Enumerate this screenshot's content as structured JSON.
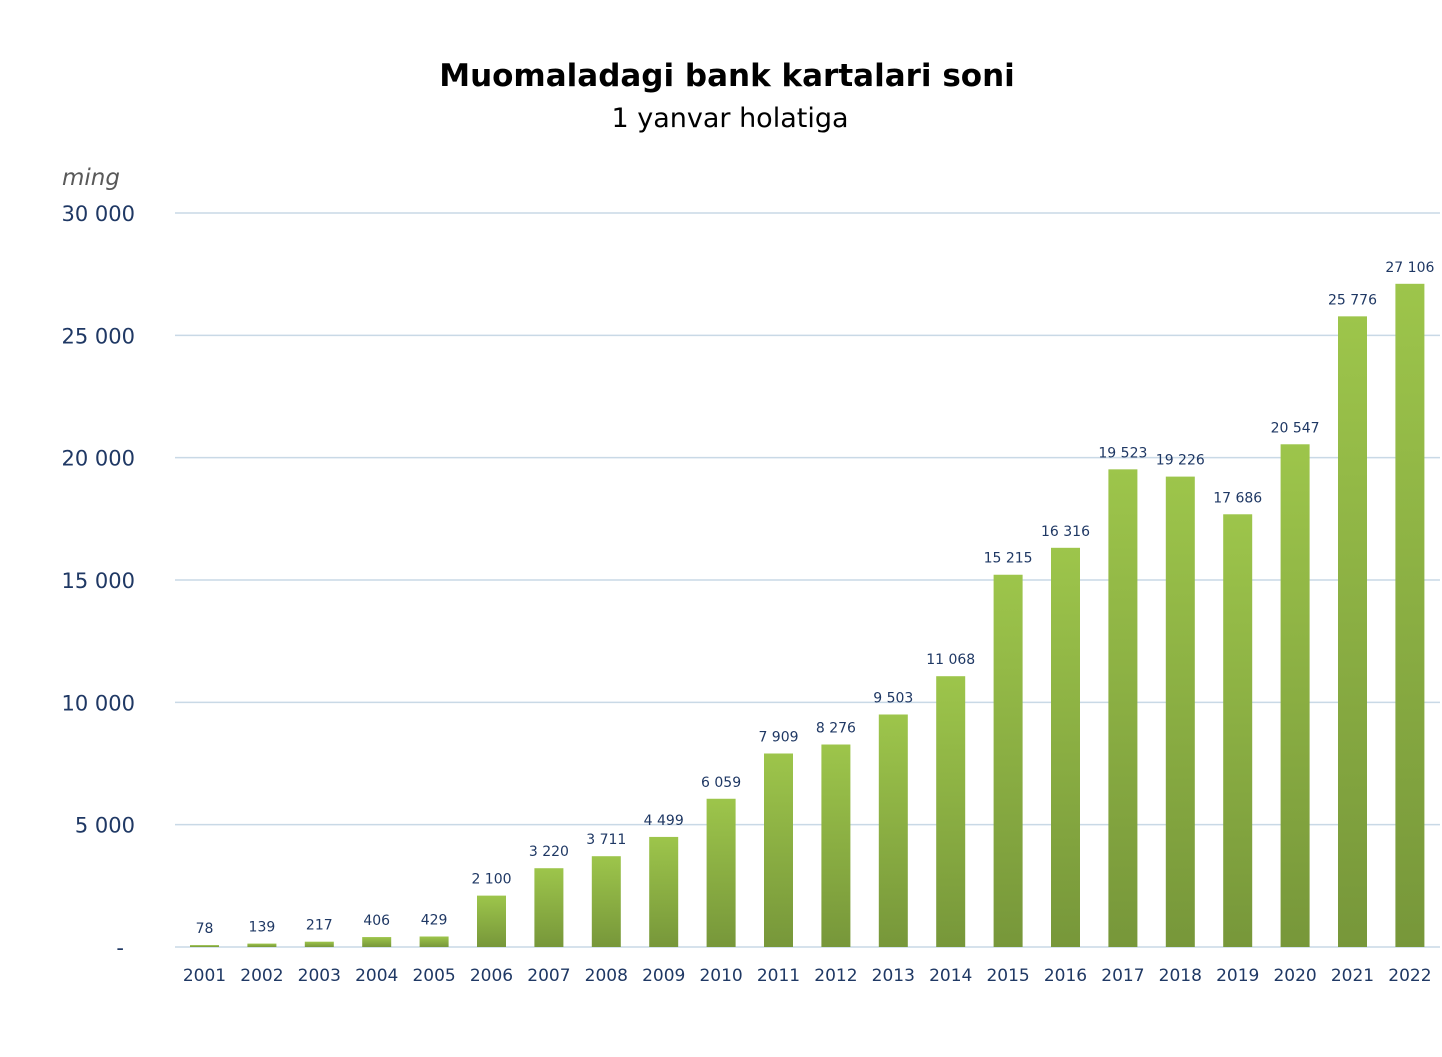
{
  "chart_data": {
    "type": "bar",
    "title": "Muomaladagi bank kartalari soni",
    "subtitle": "1 yanvar holatiga",
    "unit_label": "ming",
    "categories": [
      "2001",
      "2002",
      "2003",
      "2004",
      "2005",
      "2006",
      "2007",
      "2008",
      "2009",
      "2010",
      "2011",
      "2012",
      "2013",
      "2014",
      "2015",
      "2016",
      "2017",
      "2018",
      "2019",
      "2020",
      "2021",
      "2022"
    ],
    "values": [
      78,
      139,
      217,
      406,
      429,
      2100,
      3220,
      3711,
      4499,
      6059,
      7909,
      8276,
      9503,
      11068,
      15215,
      16316,
      19523,
      19226,
      17686,
      20547,
      25776,
      27106
    ],
    "value_labels": [
      "78",
      "139",
      "217",
      "406",
      "429",
      "2 100",
      "3 220",
      "3 711",
      "4 499",
      "6 059",
      "7 909",
      "8 276",
      "9 503",
      "11 068",
      "15 215",
      "16 316",
      "19 523",
      "19 226",
      "17 686",
      "20 547",
      "25 776",
      "27 106"
    ],
    "yticks": [
      0,
      5000,
      10000,
      15000,
      20000,
      25000,
      30000
    ],
    "ytick_labels": [
      "-",
      "5 000",
      "10 000",
      "15 000",
      "20 000",
      "25 000",
      "30 000"
    ],
    "ylim": [
      0,
      30000
    ],
    "grid": true,
    "legend": "none",
    "colors": {
      "bar_top": "#9dc54b",
      "bar_bottom": "#77973a"
    }
  }
}
